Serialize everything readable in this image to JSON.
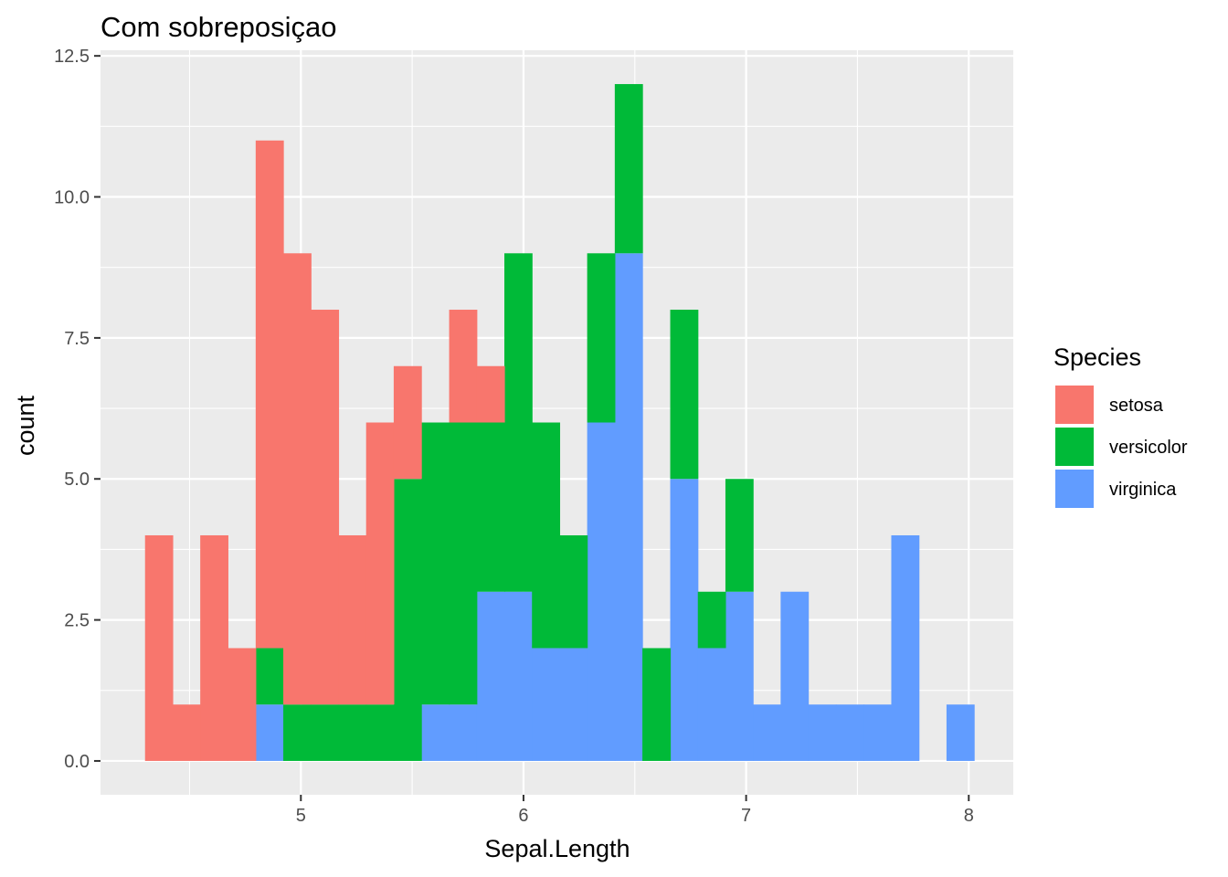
{
  "chart_data": {
    "type": "bar",
    "stacked": true,
    "title": "Com sobreposiçao",
    "xlabel": "Sepal.Length",
    "ylabel": "count",
    "xlim": [
      4.1,
      8.2
    ],
    "ylim": [
      -0.6,
      12.6
    ],
    "x_ticks": [
      5,
      6,
      7,
      8
    ],
    "x_tick_labels": [
      "5",
      "6",
      "7",
      "8"
    ],
    "x_minor_ticks": [
      4.5,
      5.5,
      6.5,
      7.5
    ],
    "y_ticks": [
      0,
      2.5,
      5,
      7.5,
      10,
      12.5
    ],
    "y_tick_labels": [
      "0.0",
      "2.5",
      "5.0",
      "7.5",
      "10.0",
      "12.5"
    ],
    "y_minor_ticks": [
      1.25,
      3.75,
      6.25,
      8.75,
      11.25
    ],
    "grid": true,
    "legend_placement": "right",
    "legend_title": "Species",
    "bin_edges": [
      4.3,
      4.424,
      4.548,
      4.672,
      4.797,
      4.921,
      5.045,
      5.169,
      5.293,
      5.417,
      5.541,
      5.666,
      5.79,
      5.914,
      6.038,
      6.162,
      6.286,
      6.41,
      6.534,
      6.659,
      6.783,
      6.907,
      7.031,
      7.155,
      7.279,
      7.403,
      7.528,
      7.652,
      7.776,
      7.9,
      8.024
    ],
    "series": [
      {
        "name": "virginica",
        "color": "#619CFF",
        "values": [
          0,
          0,
          0,
          0,
          1,
          0,
          0,
          0,
          0,
          0,
          1,
          1,
          3,
          3,
          2,
          2,
          6,
          9,
          0,
          5,
          2,
          3,
          1,
          3,
          1,
          1,
          1,
          4,
          0,
          1
        ]
      },
      {
        "name": "versicolor",
        "color": "#00BA38",
        "values": [
          0,
          0,
          0,
          0,
          1,
          1,
          1,
          1,
          1,
          5,
          5,
          5,
          3,
          6,
          4,
          2,
          3,
          3,
          2,
          3,
          1,
          2,
          0,
          0,
          0,
          0,
          0,
          0,
          0,
          0
        ]
      },
      {
        "name": "setosa",
        "color": "#F8766D",
        "values": [
          4,
          1,
          4,
          2,
          9,
          8,
          7,
          3,
          5,
          2,
          0,
          2,
          1,
          0,
          0,
          0,
          0,
          0,
          0,
          0,
          0,
          0,
          0,
          0,
          0,
          0,
          0,
          0,
          0,
          0
        ]
      }
    ],
    "legend_order": [
      "setosa",
      "versicolor",
      "virginica"
    ]
  }
}
